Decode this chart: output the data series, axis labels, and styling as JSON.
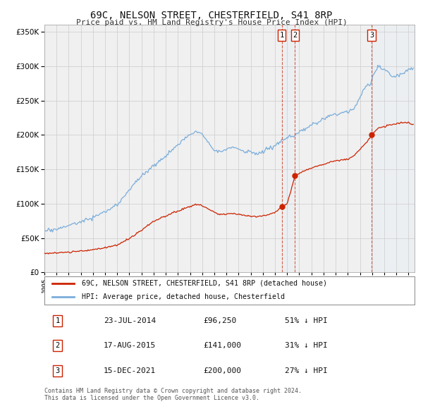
{
  "title": "69C, NELSON STREET, CHESTERFIELD, S41 8RP",
  "subtitle": "Price paid vs. HM Land Registry's House Price Index (HPI)",
  "ylim": [
    0,
    360000
  ],
  "xlim_start": 1995.0,
  "xlim_end": 2025.5,
  "sale_dates": [
    2014.555,
    2015.638,
    2021.958
  ],
  "sale_prices": [
    96250,
    141000,
    200000
  ],
  "sale_labels": [
    "1",
    "2",
    "3"
  ],
  "legend_line1": "69C, NELSON STREET, CHESTERFIELD, S41 8RP (detached house)",
  "legend_line2": "HPI: Average price, detached house, Chesterfield",
  "table_rows": [
    [
      "1",
      "23-JUL-2014",
      "£96,250",
      "51% ↓ HPI"
    ],
    [
      "2",
      "17-AUG-2015",
      "£141,000",
      "31% ↓ HPI"
    ],
    [
      "3",
      "15-DEC-2021",
      "£200,000",
      "27% ↓ HPI"
    ]
  ],
  "footer": "Contains HM Land Registry data © Crown copyright and database right 2024.\nThis data is licensed under the Open Government Licence v3.0.",
  "hpi_color": "#7aaddb",
  "price_color": "#cc2200",
  "vline_color": "#cc2200",
  "shade_color": "#ddeeff",
  "grid_color": "#cccccc",
  "bg_color": "#ffffff",
  "plot_bg_color": "#f0f0f0"
}
